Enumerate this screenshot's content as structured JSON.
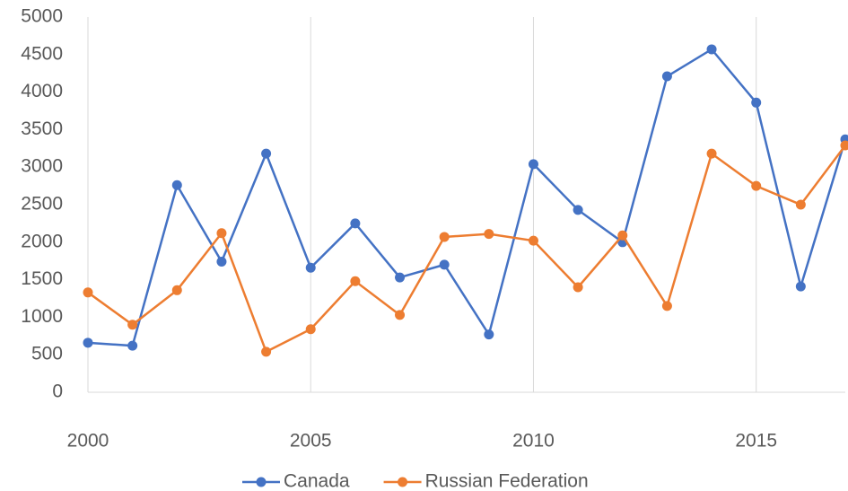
{
  "chart_data": {
    "type": "line",
    "x": [
      2000,
      2001,
      2002,
      2003,
      2004,
      2005,
      2006,
      2007,
      2008,
      2009,
      2010,
      2011,
      2012,
      2013,
      2014,
      2015,
      2016,
      2017
    ],
    "series": [
      {
        "name": "Canada",
        "color": "#4472c4",
        "values": [
          660,
          620,
          2760,
          1740,
          3180,
          1660,
          2250,
          1530,
          1700,
          770,
          3040,
          2430,
          2000,
          4210,
          4570,
          3860,
          1410,
          3370
        ]
      },
      {
        "name": "Russian Federation",
        "color": "#ed7d31",
        "values": [
          1330,
          900,
          1360,
          2120,
          540,
          840,
          1480,
          1030,
          2070,
          2110,
          2020,
          1400,
          2090,
          1150,
          3180,
          2750,
          2500,
          3290
        ]
      }
    ],
    "xlim": [
      2000,
      2017
    ],
    "xticks": [
      2000,
      2005,
      2010,
      2015
    ],
    "ylim": [
      0,
      5000
    ],
    "yticks": [
      0,
      500,
      1000,
      1500,
      2000,
      2500,
      3000,
      3500,
      4000,
      4500,
      5000
    ],
    "grid": "x",
    "legend": "bottom"
  }
}
